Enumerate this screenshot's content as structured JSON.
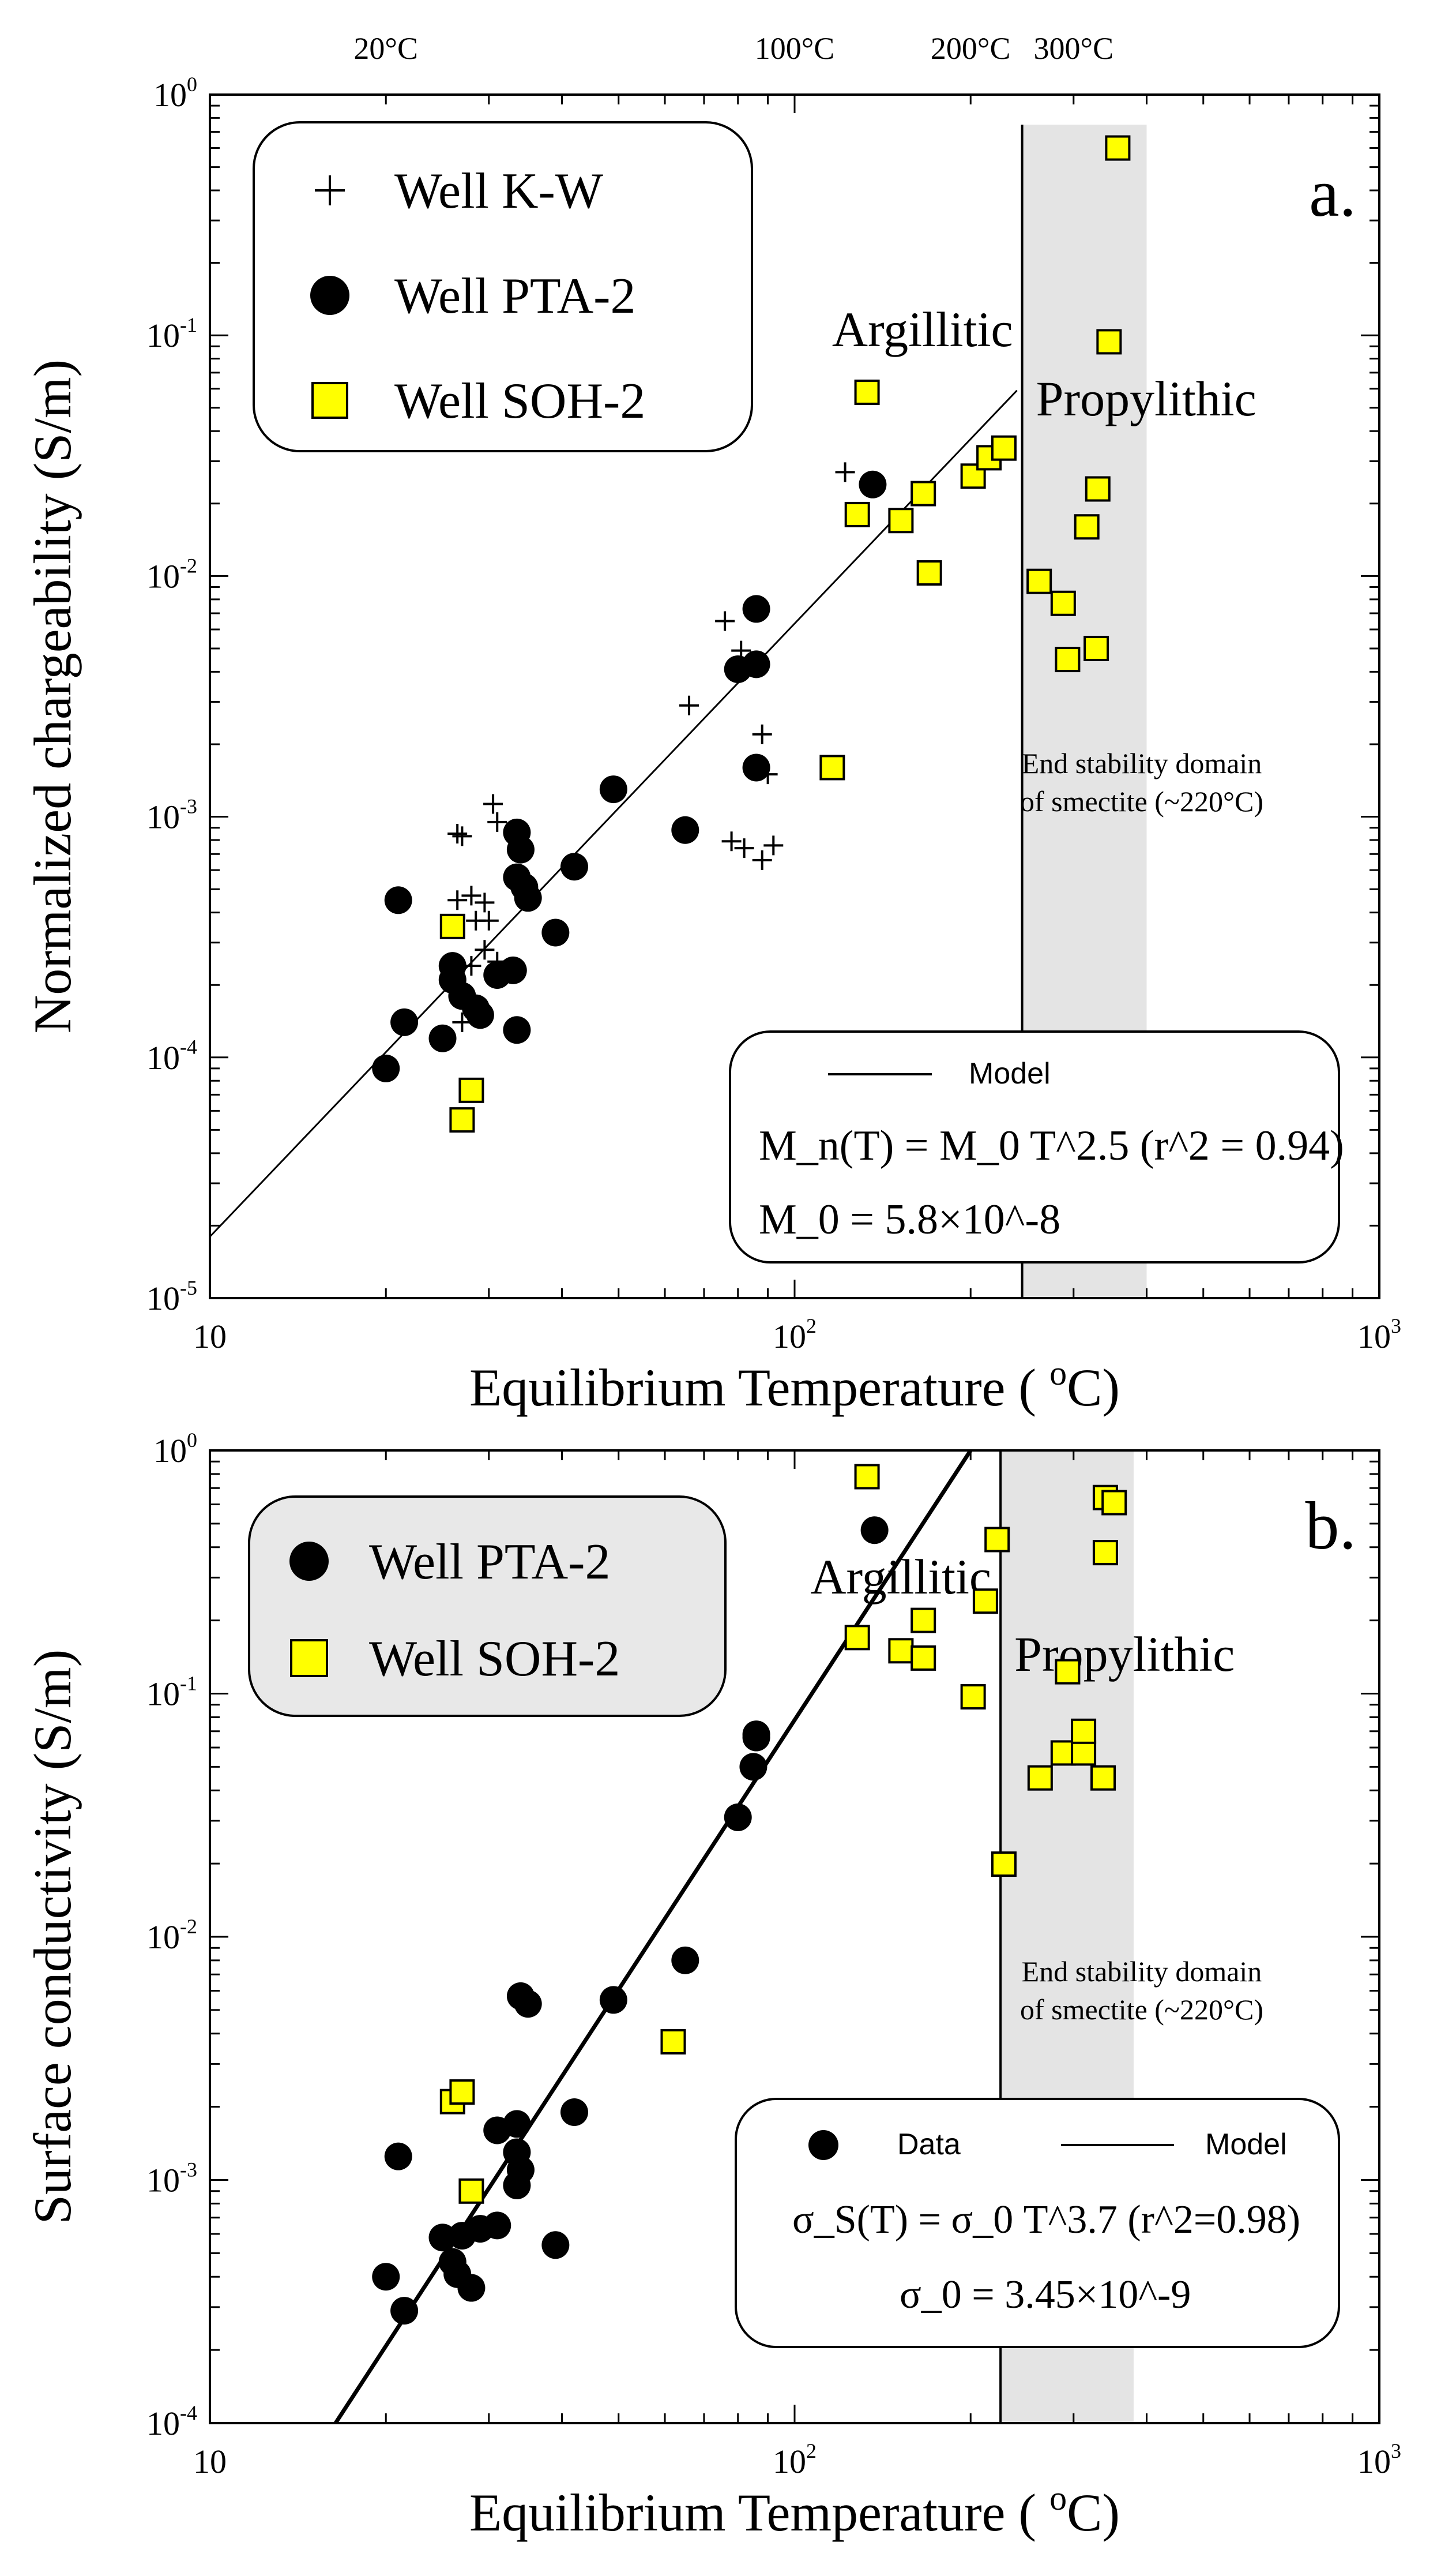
{
  "chart_data": [
    {
      "panel_label": "a.",
      "type": "scatter",
      "xscale": "log",
      "yscale": "log",
      "xlim": [
        10,
        1000
      ],
      "ylim": [
        1e-05,
        1
      ],
      "xlabel": "Equilibrium Temperature ( ",
      "xlabel_unit": "o",
      "xlabel_suffix": "C)",
      "ylabel": "Normalized chargeability (S/m)",
      "x_ticks": [
        {
          "v": 10,
          "base": "10",
          "exp": ""
        },
        {
          "v": 100,
          "base": "10",
          "exp": "2"
        },
        {
          "v": 1000,
          "base": "10",
          "exp": "3"
        }
      ],
      "y_ticks": [
        {
          "v": 1,
          "base": "10",
          "exp": "0"
        },
        {
          "v": 0.1,
          "base": "10",
          "exp": "-1"
        },
        {
          "v": 0.01,
          "base": "10",
          "exp": "-2"
        },
        {
          "v": 0.001,
          "base": "10",
          "exp": "-3"
        },
        {
          "v": 0.0001,
          "base": "10",
          "exp": "-4"
        },
        {
          "v": 1e-05,
          "base": "10",
          "exp": "-5"
        }
      ],
      "top_labels": [
        {
          "x": 20,
          "text": "20°C"
        },
        {
          "x": 100,
          "text": "100°C"
        },
        {
          "x": 200,
          "text": "200°C"
        },
        {
          "x": 300,
          "text": "300°C"
        }
      ],
      "zone": {
        "x_start": 245,
        "x_end": 400,
        "y_max": 0.75,
        "color": "#e4e4e4"
      },
      "zone_labels": {
        "argillitic": "Argillitic",
        "propylithic": "Propylithic",
        "note_line1": "End stability domain",
        "note_line2": "of smectite (~220°C)"
      },
      "legend_placement": "top-left",
      "series": [
        {
          "name": "Well K-W",
          "marker": "plus",
          "color": "#000000",
          "points": [
            [
              26.5,
              0.00085
            ],
            [
              27,
              0.00083
            ],
            [
              30.5,
              0.00113
            ],
            [
              31,
              0.00095
            ],
            [
              26.5,
              0.00045
            ],
            [
              28,
              0.00047
            ],
            [
              29.5,
              0.00044
            ],
            [
              28.5,
              0.00037
            ],
            [
              30,
              0.00037
            ],
            [
              29.5,
              0.00028
            ],
            [
              31,
              0.00025
            ],
            [
              28,
              0.00024
            ],
            [
              27,
              0.00014
            ],
            [
              66,
              0.0029
            ],
            [
              76,
              0.0065
            ],
            [
              81,
              0.0049
            ],
            [
              88,
              0.0022
            ],
            [
              90,
              0.0015
            ],
            [
              78,
              0.00079
            ],
            [
              82,
              0.00074
            ],
            [
              88,
              0.00066
            ],
            [
              92,
              0.00076
            ],
            [
              122,
              0.027
            ]
          ]
        },
        {
          "name": "Well PTA-2",
          "marker": "circle",
          "color": "#000000",
          "points": [
            [
              20,
              9e-05
            ],
            [
              21,
              0.00045
            ],
            [
              21.5,
              0.00014
            ],
            [
              25,
              0.00012
            ],
            [
              26,
              0.00024
            ],
            [
              26,
              0.00021
            ],
            [
              27,
              0.00018
            ],
            [
              28.5,
              0.00016
            ],
            [
              29,
              0.00015
            ],
            [
              31,
              0.00022
            ],
            [
              33,
              0.00023
            ],
            [
              33.5,
              0.00013
            ],
            [
              33.5,
              0.00086
            ],
            [
              34,
              0.00073
            ],
            [
              33.5,
              0.00056
            ],
            [
              34.5,
              0.00051
            ],
            [
              35,
              0.00046
            ],
            [
              39,
              0.00033
            ],
            [
              42,
              0.00062
            ],
            [
              49,
              0.0013
            ],
            [
              65,
              0.00088
            ],
            [
              80,
              0.0041
            ],
            [
              86,
              0.0043
            ],
            [
              86,
              0.0073
            ],
            [
              86,
              0.0016
            ],
            [
              136,
              0.024
            ]
          ]
        },
        {
          "name": "Well SOH-2",
          "marker": "square",
          "color": "#ffff00",
          "points": [
            [
              26,
              0.00035
            ],
            [
              27,
              5.5e-05
            ],
            [
              28,
              7.3e-05
            ],
            [
              116,
              0.0016
            ],
            [
              128,
              0.018
            ],
            [
              133,
              0.058
            ],
            [
              152,
              0.017
            ],
            [
              166,
              0.022
            ],
            [
              170,
              0.0103
            ],
            [
              202,
              0.026
            ],
            [
              215,
              0.031
            ],
            [
              228,
              0.034
            ],
            [
              262,
              0.0095
            ],
            [
              288,
              0.0077
            ],
            [
              293,
              0.0045
            ],
            [
              316,
              0.016
            ],
            [
              328,
              0.005
            ],
            [
              330,
              0.023
            ],
            [
              345,
              0.094
            ],
            [
              357,
              0.6
            ]
          ]
        }
      ],
      "model": {
        "name": "Model",
        "points": [
          [
            10,
            1.8e-05
          ],
          [
            240,
            0.059
          ]
        ]
      },
      "annotation": {
        "model_label": "Model",
        "equation": "M_n(T) = M_0 T^2.5 (r^2 = 0.94)",
        "param": "M_0 = 5.8×10^-8"
      }
    },
    {
      "panel_label": "b.",
      "type": "scatter",
      "xscale": "log",
      "yscale": "log",
      "xlim": [
        10,
        1000
      ],
      "ylim": [
        0.0001,
        1
      ],
      "xlabel": "Equilibrium Temperature ( ",
      "xlabel_unit": "o",
      "xlabel_suffix": "C)",
      "ylabel": "Surface conductivity (S/m)",
      "x_ticks": [
        {
          "v": 10,
          "base": "10",
          "exp": ""
        },
        {
          "v": 100,
          "base": "10",
          "exp": "2"
        },
        {
          "v": 1000,
          "base": "10",
          "exp": "3"
        }
      ],
      "y_ticks": [
        {
          "v": 1,
          "base": "10",
          "exp": "0"
        },
        {
          "v": 0.1,
          "base": "10",
          "exp": "-1"
        },
        {
          "v": 0.01,
          "base": "10",
          "exp": "-2"
        },
        {
          "v": 0.001,
          "base": "10",
          "exp": "-3"
        },
        {
          "v": 0.0001,
          "base": "10",
          "exp": "-4"
        }
      ],
      "zone": {
        "x_start": 225,
        "x_end": 380,
        "y_max": 1,
        "color": "#e4e4e4"
      },
      "zone_labels": {
        "argillitic": "Argillitic",
        "propylithic": "Propylithic",
        "note_line1": "End stability domain",
        "note_line2": "of smectite (~220°C)"
      },
      "legend_placement": "top-left",
      "series": [
        {
          "name": "Well PTA-2",
          "marker": "circle",
          "color": "#000000",
          "points": [
            [
              20,
              0.0004
            ],
            [
              21,
              0.00125
            ],
            [
              21.5,
              0.00029
            ],
            [
              25,
              0.00058
            ],
            [
              26,
              0.00046
            ],
            [
              26.5,
              0.00041
            ],
            [
              27,
              0.00059
            ],
            [
              28,
              0.00036
            ],
            [
              29,
              0.00063
            ],
            [
              31,
              0.00065
            ],
            [
              31,
              0.0016
            ],
            [
              33.5,
              0.0017
            ],
            [
              33.5,
              0.0013
            ],
            [
              34,
              0.0011
            ],
            [
              33.5,
              0.00095
            ],
            [
              34,
              0.0057
            ],
            [
              35,
              0.0053
            ],
            [
              39,
              0.00054
            ],
            [
              42,
              0.0019
            ],
            [
              49,
              0.0055
            ],
            [
              65,
              0.008
            ],
            [
              80,
              0.031
            ],
            [
              85,
              0.05
            ],
            [
              86,
              0.066
            ],
            [
              86,
              0.068
            ],
            [
              137,
              0.47
            ]
          ]
        },
        {
          "name": "Well SOH-2",
          "marker": "square",
          "color": "#ffff00",
          "points": [
            [
              26,
              0.0021
            ],
            [
              27,
              0.0023
            ],
            [
              28,
              0.0009
            ],
            [
              62,
              0.0037
            ],
            [
              128,
              0.17
            ],
            [
              133,
              0.78
            ],
            [
              152,
              0.15
            ],
            [
              166,
              0.2
            ],
            [
              166,
              0.14
            ],
            [
              202,
              0.097
            ],
            [
              212,
              0.24
            ],
            [
              222,
              0.43
            ],
            [
              228,
              0.0199
            ],
            [
              263,
              0.045
            ],
            [
              288,
              0.057
            ],
            [
              293,
              0.123
            ],
            [
              312,
              0.057
            ],
            [
              312,
              0.07
            ],
            [
              337,
              0.045
            ],
            [
              340,
              0.38
            ],
            [
              340,
              0.64
            ],
            [
              352,
              0.61
            ]
          ]
        }
      ],
      "model": {
        "name": "Model",
        "points": [
          [
            16.4,
            0.0001
          ],
          [
            200,
            1
          ]
        ]
      },
      "annotation": {
        "data_label": "Data",
        "model_label": "Model",
        "equation": "σ_S(T) = σ_0 T^3.7 (r^2=0.98)",
        "param": "σ_0 = 3.45×10^-9"
      }
    }
  ]
}
